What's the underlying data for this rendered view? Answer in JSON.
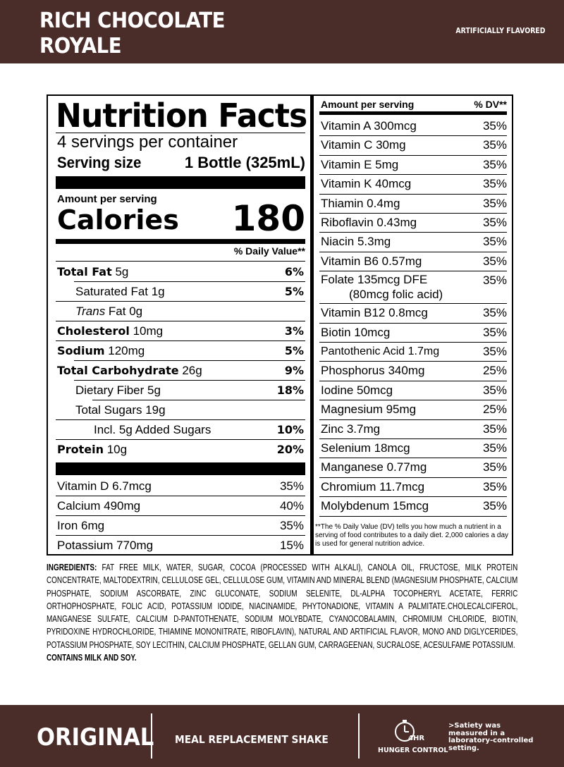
{
  "header": {
    "product_name_line1": "RICH CHOCOLATE",
    "product_name_line2": "ROYALE",
    "flavor_note": "ARTIFICIALLY FLAVORED",
    "brand_color": "#4a2c29"
  },
  "nutrition": {
    "title": "Nutrition Facts",
    "servings": "4 servings per container",
    "serving_size_label": "Serving size",
    "serving_size_value": "1 Bottle (325mL)",
    "amount_per_serving": "Amount per serving",
    "calories_label": "Calories",
    "calories_value": "180",
    "dv_header": "% Daily Value**",
    "rows": [
      {
        "label_bold": "Total Fat",
        "label": " 5g",
        "value": "6%",
        "value_bold": true
      },
      {
        "label_bold": "",
        "label": "Saturated Fat 1g",
        "value": "5%",
        "value_bold": true
      },
      {
        "label_italic": "Trans",
        "label": " Fat 0g",
        "value": ""
      },
      {
        "label_bold": "Cholesterol",
        "label": " 10mg",
        "value": "3%",
        "value_bold": true
      },
      {
        "label_bold": "Sodium",
        "label": " 120mg",
        "value": "5%",
        "value_bold": true
      },
      {
        "label_bold": "Total Carbohydrate",
        "label": " 26g",
        "value": "9%",
        "value_bold": true
      },
      {
        "label_bold": "",
        "label": "Dietary Fiber 5g",
        "value": "18%",
        "value_bold": true
      },
      {
        "label_bold": "",
        "label": "Total Sugars 19g",
        "value": ""
      },
      {
        "label_bold": "",
        "label": "Incl. 5g Added Sugars",
        "value": "10%",
        "value_bold": true
      },
      {
        "label_bold": "Protein",
        "label": " 10g",
        "value": "20%",
        "value_bold": true
      }
    ],
    "vitamins_left": [
      {
        "label": "Vitamin D 6.7mcg",
        "value": "35%"
      },
      {
        "label": "Calcium 490mg",
        "value": "40%"
      },
      {
        "label": "Iron 6mg",
        "value": "35%"
      },
      {
        "label": "Potassium 770mg",
        "value": "15%"
      }
    ],
    "right_header_label": "Amount per serving",
    "right_header_dv": "% DV**",
    "vitamins_right": [
      {
        "label": "Vitamin A 300mcg",
        "value": "35%"
      },
      {
        "label": "Vitamin C 30mg",
        "value": "35%"
      },
      {
        "label": "Vitamin E 5mg",
        "value": "35%"
      },
      {
        "label": "Vitamin K 40mcg",
        "value": "35%"
      },
      {
        "label": "Thiamin 0.4mg",
        "value": "35%"
      },
      {
        "label": "Riboflavin 0.43mg",
        "value": "35%"
      },
      {
        "label": "Niacin 5.3mg",
        "value": "35%"
      },
      {
        "label": "Vitamin B6 0.57mg",
        "value": "35%"
      },
      {
        "label": "Folate 135mcg DFE",
        "label2": "(80mcg folic acid)",
        "value": "35%"
      },
      {
        "label": "Vitamin B12 0.8mcg",
        "value": "35%"
      },
      {
        "label": "Biotin 10mcg",
        "value": "35%"
      },
      {
        "label": "Pantothenic Acid 1.7mg",
        "value": "35%"
      },
      {
        "label": "Phosphorus 340mg",
        "value": "25%"
      },
      {
        "label": "Iodine 50mcg",
        "value": "35%"
      },
      {
        "label": "Magnesium 95mg",
        "value": "25%"
      },
      {
        "label": "Zinc 3.7mg",
        "value": "35%"
      },
      {
        "label": "Selenium 18mcg",
        "value": "35%"
      },
      {
        "label": "Manganese 0.77mg",
        "value": "35%"
      },
      {
        "label": "Chromium 11.7mcg",
        "value": "35%"
      },
      {
        "label": "Molybdenum 15mcg",
        "value": "35%"
      }
    ],
    "footnote": "**The % Daily Value (DV) tells you how much a nutrient in a serving of food contributes to a daily diet. 2,000 calories a day is used for general nutrition advice."
  },
  "ingredients": {
    "label": "INGREDIENTS:",
    "text": " FAT FREE MILK, WATER, SUGAR, COCOA (PROCESSED WITH ALKALI), CANOLA OIL, FRUCTOSE, MILK PROTEIN CONCENTRATE, MALTODEXTRIN, CELLULOSE GEL, CELLULOSE GUM, VITAMIN AND MINERAL BLEND (MAGNESIUM PHOSPHATE, CALCIUM PHOSPHATE, SODIUM ASCORBATE, ZINC GLUCONATE, SODIUM SELENITE, DL-ALPHA TOCOPHERYL ACETATE, FERRIC ORTHOPHOSPHATE, FOLIC ACID, POTASSIUM IODIDE, NIACINAMIDE, PHYTONADIONE, VITAMIN A PALMITATE.CHOLECALCIFEROL, MANGANESE SULFATE, CALCIUM D-PANTOTHENATE, SODIUM MOLYBDATE, CYANOCOBALAMIN, CHROMIUM CHLORIDE, BIOTIN, PYRIDOXINE HYDROCHLORIDE, THIAMINE MONONITRATE, RIBOFLAVIN), NATURAL AND ARTIFICIAL FLAVOR, MONO AND DIGLYCERIDES, POTASSIUM PHOSPHATE, SOY LECITHIN, CALCIUM PHOSPHATE, GELLAN GUM, CARRAGEENAN, SUCRALOSE, ACESULFAME POTASSIUM.",
    "contains": "CONTAINS MILK AND SOY."
  },
  "footer": {
    "variant": "ORIGINAL",
    "product_type": "MEAL REPLACEMENT SHAKE",
    "hunger_icon_text": "4HR",
    "hunger_label": "HUNGER CONTROL",
    "satiety_note": ">Satiety was measured in a laboratory-controlled setting."
  }
}
